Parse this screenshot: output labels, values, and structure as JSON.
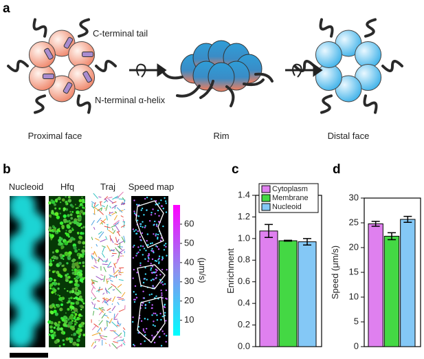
{
  "panel_labels": [
    "a",
    "b",
    "c",
    "d"
  ],
  "diagram": {
    "tail_label": "C-terminal tail",
    "helix_label": "N-terminal α-helix",
    "views": [
      "Proximal face",
      "Rim",
      "Distal face"
    ]
  },
  "images": {
    "titles": [
      "Nucleoid",
      "Hfq",
      "Traj",
      "Speed map"
    ],
    "colorbar": {
      "label": "(μm/s)",
      "lim": [
        2,
        70
      ],
      "ticks": [
        10,
        20,
        30,
        40,
        50,
        60
      ]
    }
  },
  "chart_data": [
    {
      "type": "bar",
      "ylabel": "Enrichment",
      "ylim": [
        0,
        1.4
      ],
      "yticks": [
        {
          "value": 0,
          "label": "0.0"
        },
        0.2,
        0.4,
        0.6,
        0.8,
        {
          "value": 1,
          "label": "1.0"
        },
        1.2,
        1.4
      ],
      "legend": "top",
      "series": [
        {
          "name": "Cytoplasm",
          "color": "#df80ef",
          "values": [
            1.07
          ],
          "errors": [
            0.06
          ]
        },
        {
          "name": "Membrane",
          "color": "#44d844",
          "values": [
            0.98
          ],
          "errors": [
            0.004
          ]
        },
        {
          "name": "Nucleoid",
          "color": "#84c8f6",
          "values": [
            0.97
          ],
          "errors": [
            0.03
          ]
        }
      ]
    },
    {
      "type": "bar",
      "ylabel": "Speed (μm/s)",
      "ylim": [
        0,
        30
      ],
      "yticks": [
        0,
        5,
        10,
        15,
        20,
        25,
        30
      ],
      "series": [
        {
          "color": "#df80ef",
          "values": [
            24.8
          ],
          "errors": [
            0.5
          ]
        },
        {
          "color": "#44d844",
          "values": [
            22.3
          ],
          "errors": [
            0.7
          ]
        },
        {
          "color": "#84c8f6",
          "values": [
            25.7
          ],
          "errors": [
            0.6
          ]
        }
      ]
    }
  ]
}
